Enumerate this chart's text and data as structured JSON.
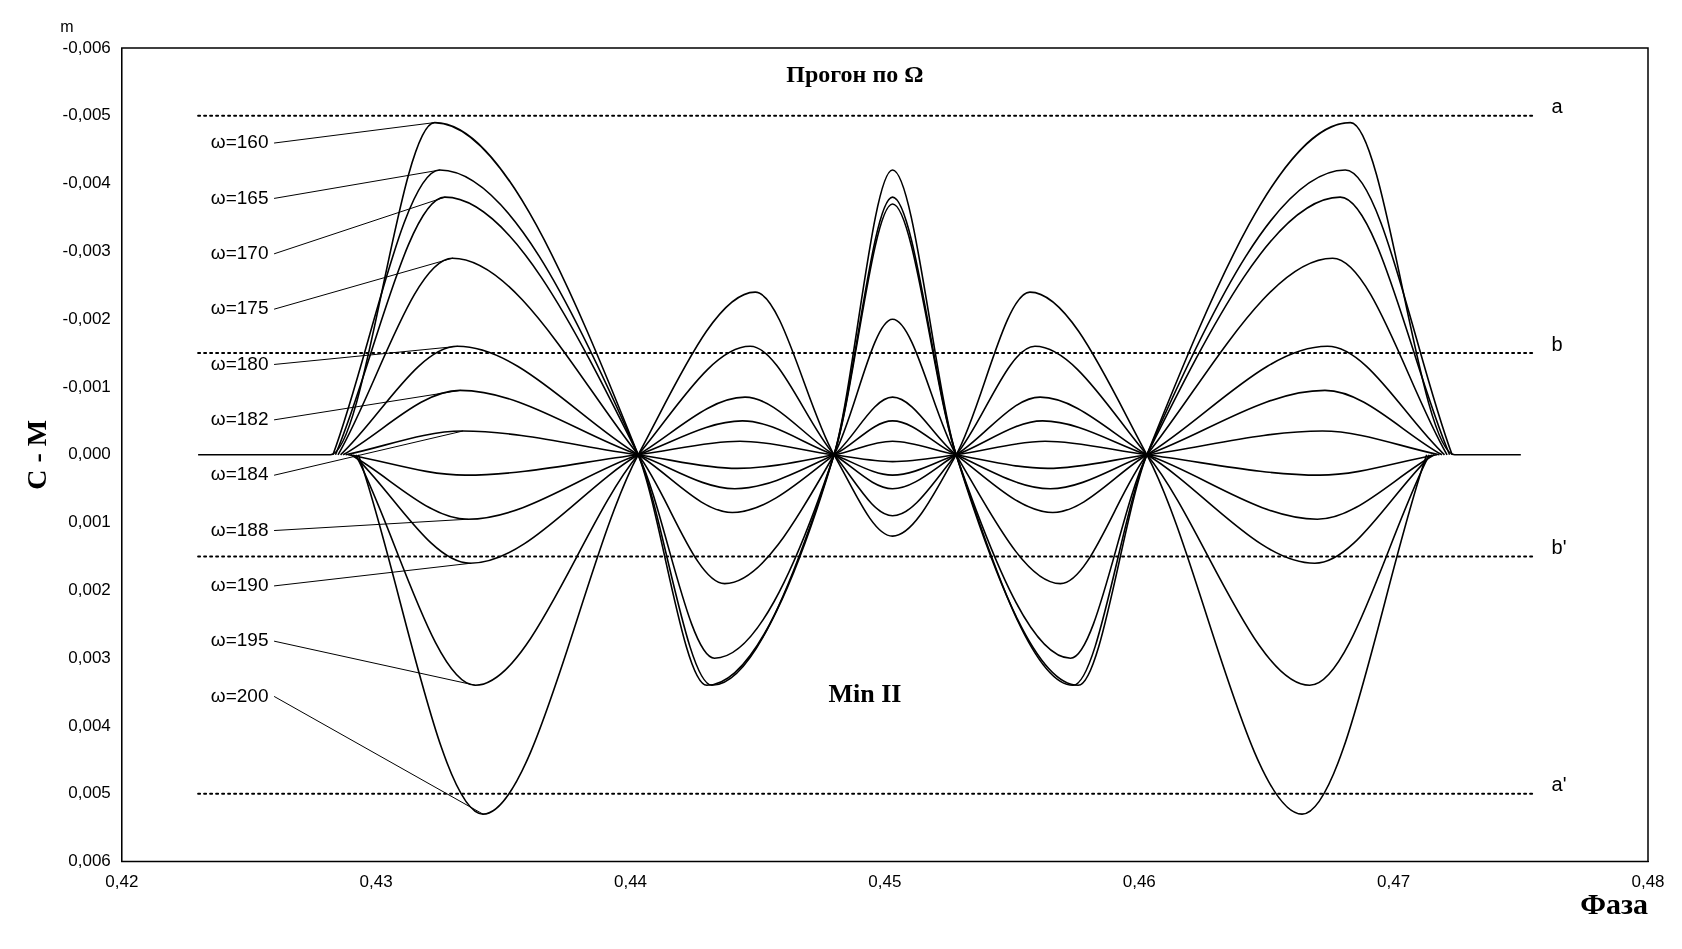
{
  "chart_data": {
    "type": "line",
    "title": "Прогон по Ω",
    "xlabel": "Фаза",
    "ylabel": "C - M",
    "annotations": [
      "m",
      "Min II",
      {
        "text": "ω=160",
        "x": 0.4323,
        "y": -0.0049
      },
      {
        "text": "ω=165",
        "x": 0.4325,
        "y": -0.0042
      },
      {
        "text": "ω=170",
        "x": 0.4327,
        "y": -0.0038
      },
      {
        "text": "ω=175",
        "x": 0.433,
        "y": -0.0029
      },
      {
        "text": "ω=180",
        "x": 0.4332,
        "y": -0.0016
      },
      {
        "text": "ω=182",
        "x": 0.4333,
        "y": -0.00095
      },
      {
        "text": "ω=184",
        "x": 0.4334,
        "y": -0.00035
      },
      {
        "text": "ω=188",
        "x": 0.4336,
        "y": 0.00095
      },
      {
        "text": "ω=190",
        "x": 0.4337,
        "y": 0.0016
      },
      {
        "text": "ω=195",
        "x": 0.4339,
        "y": 0.0034
      },
      {
        "text": "ω=200",
        "x": 0.4342,
        "y": 0.0053
      }
    ],
    "xlim": [
      0.42,
      0.48
    ],
    "xticks": [
      {
        "value": 0.42,
        "label": "0,42"
      },
      {
        "value": 0.43,
        "label": "0,43"
      },
      {
        "value": 0.44,
        "label": "0,44"
      },
      {
        "value": 0.45,
        "label": "0,45"
      },
      {
        "value": 0.46,
        "label": "0,46"
      },
      {
        "value": 0.47,
        "label": "0,47"
      },
      {
        "value": 0.48,
        "label": "0,48"
      }
    ],
    "ylim": [
      0.006,
      -0.006
    ],
    "yticks": [
      {
        "value": -0.006,
        "label": "-0,006"
      },
      {
        "value": -0.005,
        "label": "-0,005"
      },
      {
        "value": -0.004,
        "label": "-0,004"
      },
      {
        "value": -0.003,
        "label": "-0,003"
      },
      {
        "value": -0.002,
        "label": "-0,002"
      },
      {
        "value": -0.001,
        "label": "-0,001"
      },
      {
        "value": 0,
        "label": "0,000"
      },
      {
        "value": 0.001,
        "label": "0,001"
      },
      {
        "value": 0.002,
        "label": "0,002"
      },
      {
        "value": 0.003,
        "label": "0,003"
      },
      {
        "value": 0.004,
        "label": "0,004"
      },
      {
        "value": 0.005,
        "label": "0,005"
      },
      {
        "value": 0.006,
        "label": "0,006"
      }
    ],
    "grid": false,
    "legend": false,
    "marker": "none",
    "line_style": "solid",
    "ref_lines": [
      {
        "axis": "y",
        "value": -0.005,
        "label": "a",
        "line_style": "dotted",
        "color": "#000000"
      },
      {
        "axis": "y",
        "value": -0.0015,
        "label": "b",
        "line_style": "dotted",
        "color": "#000000"
      },
      {
        "axis": "y",
        "value": 0.0015,
        "label": "b'",
        "line_style": "dotted",
        "color": "#000000"
      },
      {
        "axis": "y",
        "value": 0.005,
        "label": "a'",
        "line_style": "dotted",
        "color": "#000000"
      }
    ],
    "series": [
      {
        "color": "#000000",
        "x": [
          0.423,
          0.4282,
          0.4323,
          0.4403,
          0.443,
          0.448,
          0.4503,
          0.4528,
          0.4576,
          0.4603,
          0.4683,
          0.4724,
          0.475
        ],
        "values": [
          0,
          0,
          -0.0049,
          0,
          0.0034,
          0,
          -0.0042,
          0,
          0.0034,
          0,
          -0.0049,
          0,
          0
        ]
      },
      {
        "color": "#000000",
        "x": [
          0.4283,
          0.4325,
          0.4403,
          0.4432,
          0.448,
          0.4503,
          0.4528,
          0.4574,
          0.4603,
          0.4681,
          0.4723
        ],
        "values": [
          0,
          -0.0042,
          0,
          0.0034,
          0,
          -0.0038,
          0,
          0.0034,
          0,
          -0.0042,
          0
        ]
      },
      {
        "color": "#000000",
        "x": [
          0.4284,
          0.4327,
          0.4403,
          0.4433,
          0.448,
          0.4503,
          0.4528,
          0.4573,
          0.4603,
          0.4679,
          0.4722
        ],
        "values": [
          0,
          -0.0038,
          0,
          0.003,
          0,
          -0.0037,
          0,
          0.003,
          0,
          -0.0038,
          0
        ]
      },
      {
        "color": "#000000",
        "x": [
          0.4285,
          0.433,
          0.4403,
          0.4437,
          0.448,
          0.4503,
          0.4528,
          0.4569,
          0.4603,
          0.4676,
          0.4721
        ],
        "values": [
          0,
          -0.0029,
          0,
          0.0019,
          0,
          -0.002,
          0,
          0.0019,
          0,
          -0.0029,
          0
        ]
      },
      {
        "color": "#000000",
        "x": [
          0.4286,
          0.4332,
          0.4403,
          0.444,
          0.448,
          0.4503,
          0.4528,
          0.4566,
          0.4603,
          0.4674,
          0.472
        ],
        "values": [
          0,
          -0.0016,
          0,
          0.00085,
          0,
          -0.00085,
          0,
          0.00085,
          0,
          -0.0016,
          0
        ]
      },
      {
        "color": "#000000",
        "x": [
          0.4287,
          0.4333,
          0.4403,
          0.4441,
          0.448,
          0.4503,
          0.4528,
          0.4565,
          0.4603,
          0.4673,
          0.4719
        ],
        "values": [
          0,
          -0.00095,
          0,
          0.0005,
          0,
          -0.0005,
          0,
          0.0005,
          0,
          -0.00095,
          0
        ]
      },
      {
        "color": "#000000",
        "x": [
          0.4288,
          0.4334,
          0.4403,
          0.4442,
          0.448,
          0.4503,
          0.4528,
          0.4564,
          0.4603,
          0.4672,
          0.4718
        ],
        "values": [
          0,
          -0.00035,
          0,
          0.0002,
          0,
          -0.0002,
          0,
          0.0002,
          0,
          -0.00035,
          0
        ]
      },
      {
        "color": "#000000",
        "x": [
          0.4289,
          0.4335,
          0.4403,
          0.4443,
          0.448,
          0.4503,
          0.4528,
          0.4563,
          0.4603,
          0.4671,
          0.4717
        ],
        "values": [
          0,
          0.0003,
          0,
          -0.0002,
          0,
          0.0001,
          0,
          -0.0002,
          0,
          0.0003,
          0
        ]
      },
      {
        "color": "#000000",
        "x": [
          0.429,
          0.4336,
          0.4403,
          0.4444,
          0.448,
          0.4503,
          0.4528,
          0.4562,
          0.4603,
          0.467,
          0.4716
        ],
        "values": [
          0,
          0.00095,
          0,
          -0.0005,
          0,
          0.0003,
          0,
          -0.0005,
          0,
          0.00095,
          0
        ]
      },
      {
        "color": "#000000",
        "x": [
          0.4291,
          0.4337,
          0.4403,
          0.4445,
          0.448,
          0.4503,
          0.4528,
          0.4561,
          0.4603,
          0.4669,
          0.4715
        ],
        "values": [
          0,
          0.0016,
          0,
          -0.00085,
          0,
          0.0005,
          0,
          -0.00085,
          0,
          0.0016,
          0
        ]
      },
      {
        "color": "#000000",
        "x": [
          0.4292,
          0.4339,
          0.4403,
          0.4447,
          0.448,
          0.4503,
          0.4528,
          0.4559,
          0.4603,
          0.4667,
          0.4714
        ],
        "values": [
          0,
          0.0034,
          0,
          -0.0016,
          0,
          0.0009,
          0,
          -0.0016,
          0,
          0.0034,
          0
        ]
      },
      {
        "color": "#000000",
        "x": [
          0.4293,
          0.4342,
          0.4403,
          0.4449,
          0.448,
          0.4503,
          0.4528,
          0.4557,
          0.4603,
          0.4664,
          0.4713
        ],
        "values": [
          0,
          0.0053,
          0,
          -0.0024,
          0,
          0.0012,
          0,
          -0.0024,
          0,
          0.0053,
          0
        ]
      }
    ]
  }
}
